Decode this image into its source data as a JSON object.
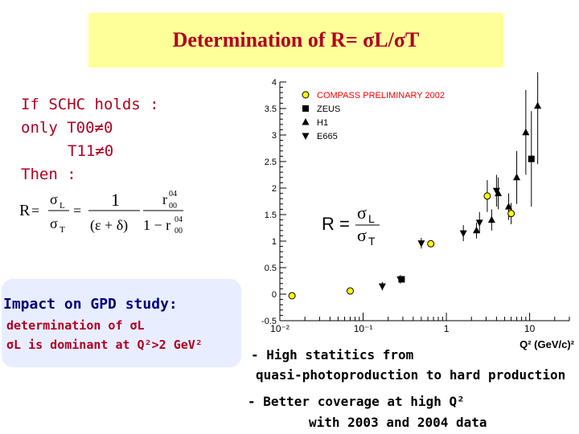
{
  "title": {
    "text": "Determination of R= ",
    "sigma_l": "σL/",
    "sigma_t": "σT"
  },
  "left_panel": {
    "schc_line1": "If SCHC holds :",
    "schc_line2": "only  T00≠0",
    "schc_line3": "T11≠0",
    "schc_line4": "Then :",
    "formula": {
      "r": "R",
      "eq": "=",
      "sigma": "σ",
      "l": "L",
      "t": "T",
      "one": "1",
      "denominator": "(ε + δ)",
      "r00": "r",
      "sup04": "04",
      "sub00": "00",
      "one_minus": "1 − r"
    },
    "impact_title": "Impact on GPD study:",
    "impact_line1": "determination of σL",
    "impact_line2": "σL is dominant at Q²>2 GeV²"
  },
  "bullets": {
    "b1_line1": "- High statitics from",
    "b1_line2": "quasi-photoproduction to hard production",
    "b2_line1": "- Better coverage at high Q²",
    "b2_line2": "with 2003 and 2004 data"
  },
  "chart_data": {
    "type": "scatter",
    "x_scale": "log",
    "xlim": [
      0.01,
      30
    ],
    "ylim": [
      -0.5,
      4
    ],
    "x_ticks": [
      {
        "value": 0.01,
        "label": "10⁻²"
      },
      {
        "value": 0.1,
        "label": "10⁻¹"
      },
      {
        "value": 1,
        "label": "1"
      },
      {
        "value": 10,
        "label": "10"
      }
    ],
    "y_ticks": [
      {
        "value": -0.5,
        "label": "-0.5"
      },
      {
        "value": 0,
        "label": "0"
      },
      {
        "value": 0.5,
        "label": "0.5"
      },
      {
        "value": 1,
        "label": "1"
      },
      {
        "value": 1.5,
        "label": "1.5"
      },
      {
        "value": 2,
        "label": "2"
      },
      {
        "value": 2.5,
        "label": "2.5"
      },
      {
        "value": 3,
        "label": "3"
      },
      {
        "value": 3.5,
        "label": "3.5"
      },
      {
        "value": 4,
        "label": "4"
      }
    ],
    "xlabel": "Q² (GeV/c)²",
    "legend_position": "top-right",
    "annotation": {
      "r": "R =",
      "sigma": "σ",
      "l": "L",
      "t": "T"
    },
    "colors": {
      "compass": "#ffff00",
      "compass_label": "#ff0000",
      "marker": "#000000"
    },
    "series": [
      {
        "name": "COMPASS PRELIMINARY 2002",
        "marker": "circle",
        "points": [
          {
            "x": 0.014,
            "y": -0.03
          },
          {
            "x": 0.07,
            "y": 0.06
          },
          {
            "x": 0.65,
            "y": 0.95
          },
          {
            "x": 3.1,
            "y": 1.85
          },
          {
            "x": 6.0,
            "y": 1.52
          }
        ]
      },
      {
        "name": "ZEUS",
        "marker": "square",
        "points": [
          {
            "x": 0.29,
            "y": 0.28
          },
          {
            "x": 10.5,
            "y": 2.55
          }
        ]
      },
      {
        "name": "H1",
        "marker": "triangle-up",
        "points": [
          {
            "x": 2.3,
            "y": 1.2
          },
          {
            "x": 3.5,
            "y": 1.4
          },
          {
            "x": 4.2,
            "y": 1.9
          },
          {
            "x": 5.6,
            "y": 1.65
          },
          {
            "x": 7.0,
            "y": 2.2
          },
          {
            "x": 9.0,
            "y": 3.05
          },
          {
            "x": 12.5,
            "y": 3.55
          }
        ]
      },
      {
        "name": "E665",
        "marker": "triangle-down",
        "points": [
          {
            "x": 0.17,
            "y": 0.15
          },
          {
            "x": 0.28,
            "y": 0.28
          },
          {
            "x": 0.5,
            "y": 0.96
          },
          {
            "x": 1.6,
            "y": 1.15
          },
          {
            "x": 2.5,
            "y": 1.35
          },
          {
            "x": 4.0,
            "y": 1.95
          }
        ]
      }
    ]
  }
}
